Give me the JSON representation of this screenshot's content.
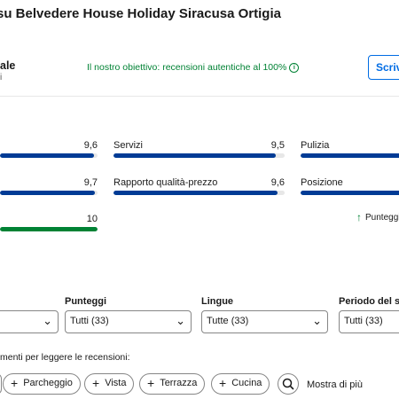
{
  "title": "su Belvedere House Holiday Siracusa Ortigia",
  "overall": {
    "label": "ale",
    "sub": "i"
  },
  "goal": {
    "text": "Il nostro obiettivo: recensioni autentiche al 100%",
    "icon": "info-icon"
  },
  "write_button": {
    "label": "Scrivi"
  },
  "colors": {
    "bar": "#003b95",
    "bar_green": "#008234",
    "accent": "#006ce4",
    "goal_text": "#008234"
  },
  "categories": [
    {
      "label": "",
      "score": "9,6",
      "fill": 0.96
    },
    {
      "label": "Servizi",
      "score": "9,5",
      "fill": 0.95
    },
    {
      "label": "Pulizia",
      "score": "",
      "fill": 1.0
    },
    {
      "label": "",
      "score": "9,7",
      "fill": 0.97
    },
    {
      "label": "Rapporto qualità-prezzo",
      "score": "9,6",
      "fill": 0.96
    },
    {
      "label": "Posizione",
      "score": "",
      "fill": 1.0
    },
    {
      "label": "",
      "score": "10",
      "fill": 1.0
    }
  ],
  "trend": {
    "icon": "arrow-up-icon",
    "text": "Punteggi"
  },
  "filters": [
    {
      "label": "",
      "value": ""
    },
    {
      "label": "Punteggi",
      "value": "Tutti (33)"
    },
    {
      "label": "Lingue",
      "value": "Tutte (33)"
    },
    {
      "label": "Periodo del sog",
      "value": "Tutti (33)"
    }
  ],
  "topics": {
    "label": "menti per leggere le recensioni:",
    "chips": [
      "",
      "Parcheggio",
      "Vista",
      "Terrazza",
      "Cucina"
    ],
    "search_icon": "search-icon",
    "show_more": "Mostra di più"
  }
}
